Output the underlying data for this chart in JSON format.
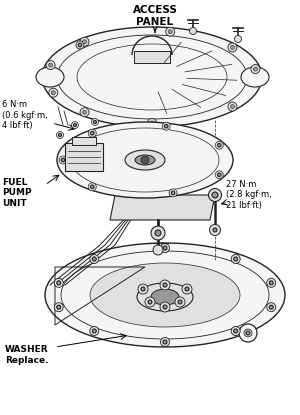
{
  "bg_color": "#ffffff",
  "fig_width": 3.0,
  "fig_height": 4.15,
  "dpi": 100,
  "labels": {
    "access_panel": "ACCESS\nPANEL",
    "torque1": "6 N·m\n(0.6 kgf·m,\n4 lbf·ft)",
    "torque2": "27 N·m\n(2.8 kgf·m,\n21 lbf·ft)",
    "fuel_pump": "FUEL\nPUMP\nUNIT",
    "washer": "WASHER\nReplace."
  },
  "line_color": "#222222",
  "text_color": "#000000",
  "fill_light": "#f5f5f5",
  "fill_mid": "#e0e0e0",
  "fill_dark": "#999999"
}
